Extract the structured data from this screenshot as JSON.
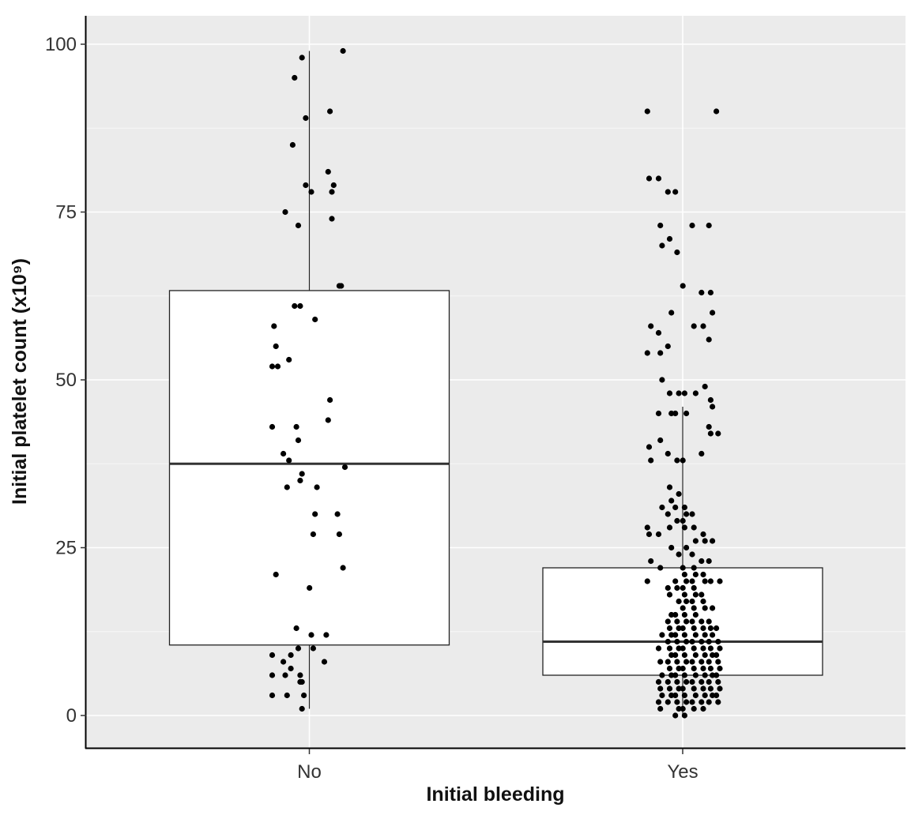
{
  "chart_data": {
    "type": "box",
    "title": "",
    "xlabel": "Initial bleeding",
    "ylabel": "Initial platelet count (x10⁹)",
    "ylim": [
      -5,
      105
    ],
    "yticks": [
      0,
      25,
      50,
      75,
      100
    ],
    "grid": true,
    "categories": [
      "No",
      "Yes"
    ],
    "boxes": [
      {
        "category": "No",
        "whisker_low": 1,
        "q1": 10.5,
        "median": 37.5,
        "q3": 63.3,
        "whisker_high": 99
      },
      {
        "category": "Yes",
        "whisker_low": 0,
        "q1": 6,
        "median": 11,
        "q3": 22,
        "whisker_high": 46
      }
    ],
    "points": [
      {
        "category": "No",
        "offset": 0.19,
        "values": [
          99
        ]
      },
      {
        "category": "No",
        "offset": -0.03,
        "values": [
          98
        ]
      },
      {
        "category": "No",
        "offset": -0.07,
        "values": [
          95
        ]
      },
      {
        "category": "No",
        "offset": 0.12,
        "values": [
          90
        ]
      },
      {
        "category": "No",
        "offset": -0.01,
        "values": [
          89
        ]
      },
      {
        "category": "No",
        "offset": -0.08,
        "values": [
          85
        ]
      },
      {
        "category": "No",
        "offset": 0.11,
        "values": [
          81
        ]
      },
      {
        "category": "No",
        "offset": 0.14,
        "values": [
          79
        ]
      },
      {
        "category": "No",
        "offset": -0.01,
        "values": [
          79
        ]
      },
      {
        "category": "No",
        "offset": 0.02,
        "values": [
          78
        ]
      },
      {
        "category": "No",
        "offset": 0.13,
        "values": [
          78
        ]
      },
      {
        "category": "No",
        "offset": -0.12,
        "values": [
          75
        ]
      },
      {
        "category": "No",
        "offset": 0.13,
        "values": [
          74
        ]
      },
      {
        "category": "No",
        "offset": -0.05,
        "values": [
          73
        ]
      },
      {
        "category": "No",
        "offset": 0.17,
        "values": [
          64
        ]
      },
      {
        "category": "No",
        "offset": 0.18,
        "values": [
          64
        ]
      },
      {
        "category": "No",
        "offset": -0.07,
        "values": [
          61
        ]
      },
      {
        "category": "No",
        "offset": -0.04,
        "values": [
          61
        ]
      },
      {
        "category": "No",
        "offset": 0.04,
        "values": [
          59
        ]
      },
      {
        "category": "No",
        "offset": -0.18,
        "values": [
          58
        ]
      },
      {
        "category": "No",
        "offset": -0.17,
        "values": [
          55
        ]
      },
      {
        "category": "No",
        "offset": -0.1,
        "values": [
          53
        ]
      },
      {
        "category": "No",
        "offset": -0.19,
        "values": [
          52
        ]
      },
      {
        "category": "No",
        "offset": -0.16,
        "values": [
          52
        ]
      },
      {
        "category": "No",
        "offset": 0.12,
        "values": [
          47
        ]
      },
      {
        "category": "No",
        "offset": 0.11,
        "values": [
          44
        ]
      },
      {
        "category": "No",
        "offset": -0.19,
        "values": [
          43
        ]
      },
      {
        "category": "No",
        "offset": -0.06,
        "values": [
          43
        ]
      },
      {
        "category": "No",
        "offset": -0.05,
        "values": [
          41
        ]
      },
      {
        "category": "No",
        "offset": -0.13,
        "values": [
          39
        ]
      },
      {
        "category": "No",
        "offset": -0.1,
        "values": [
          38
        ]
      },
      {
        "category": "No",
        "offset": 0.2,
        "values": [
          37
        ]
      },
      {
        "category": "No",
        "offset": -0.03,
        "values": [
          36
        ]
      },
      {
        "category": "No",
        "offset": -0.04,
        "values": [
          35
        ]
      },
      {
        "category": "No",
        "offset": -0.11,
        "values": [
          34
        ]
      },
      {
        "category": "No",
        "offset": 0.05,
        "values": [
          34
        ]
      },
      {
        "category": "No",
        "offset": 0.04,
        "values": [
          30
        ]
      },
      {
        "category": "No",
        "offset": 0.16,
        "values": [
          30
        ]
      },
      {
        "category": "No",
        "offset": 0.03,
        "values": [
          27
        ]
      },
      {
        "category": "No",
        "offset": 0.17,
        "values": [
          27
        ]
      },
      {
        "category": "No",
        "offset": 0.19,
        "values": [
          22
        ]
      },
      {
        "category": "No",
        "offset": -0.17,
        "values": [
          21
        ]
      },
      {
        "category": "No",
        "offset": 0.01,
        "values": [
          19
        ]
      },
      {
        "category": "No",
        "offset": -0.06,
        "values": [
          13
        ]
      },
      {
        "category": "No",
        "offset": 0.02,
        "values": [
          12
        ]
      },
      {
        "category": "No",
        "offset": 0.1,
        "values": [
          12
        ]
      },
      {
        "category": "No",
        "offset": -0.05,
        "values": [
          10
        ]
      },
      {
        "category": "No",
        "offset": 0.03,
        "values": [
          10
        ]
      },
      {
        "category": "No",
        "offset": -0.19,
        "values": [
          9
        ]
      },
      {
        "category": "No",
        "offset": -0.09,
        "values": [
          9
        ]
      },
      {
        "category": "No",
        "offset": -0.13,
        "values": [
          8
        ]
      },
      {
        "category": "No",
        "offset": 0.09,
        "values": [
          8
        ]
      },
      {
        "category": "No",
        "offset": -0.09,
        "values": [
          7
        ]
      },
      {
        "category": "No",
        "offset": -0.19,
        "values": [
          6
        ]
      },
      {
        "category": "No",
        "offset": -0.12,
        "values": [
          6
        ]
      },
      {
        "category": "No",
        "offset": -0.04,
        "values": [
          6
        ]
      },
      {
        "category": "No",
        "offset": -0.04,
        "values": [
          5
        ]
      },
      {
        "category": "No",
        "offset": -0.03,
        "values": [
          5
        ]
      },
      {
        "category": "No",
        "offset": -0.19,
        "values": [
          3
        ]
      },
      {
        "category": "No",
        "offset": -0.11,
        "values": [
          3
        ]
      },
      {
        "category": "No",
        "offset": -0.02,
        "values": [
          3
        ]
      },
      {
        "category": "No",
        "offset": -0.03,
        "values": [
          1
        ]
      },
      {
        "category": "Yes",
        "offset": -0.18,
        "values": [
          90,
          80,
          58,
          54,
          40,
          38,
          28,
          27,
          23,
          20
        ]
      },
      {
        "category": "Yes",
        "offset": -0.12,
        "values": [
          80,
          73,
          70,
          57,
          54,
          50,
          45,
          41,
          31,
          27,
          22,
          12,
          10,
          8,
          6,
          5,
          4,
          3,
          2,
          1
        ]
      },
      {
        "category": "Yes",
        "offset": -0.07,
        "values": [
          78,
          71,
          60,
          55,
          48,
          45,
          39,
          34,
          32,
          30,
          28,
          25,
          19,
          18,
          15,
          14,
          13,
          12,
          11,
          10,
          9,
          8,
          7,
          6,
          5,
          4,
          3,
          2
        ]
      },
      {
        "category": "Yes",
        "offset": -0.03,
        "values": [
          78,
          69,
          48,
          45,
          38,
          33,
          31,
          29,
          24,
          20,
          19,
          17,
          15,
          14,
          13,
          12,
          11,
          10,
          9,
          8,
          7,
          6,
          5,
          4,
          3,
          2,
          1,
          0
        ]
      },
      {
        "category": "Yes",
        "offset": 0.01,
        "values": [
          64,
          48,
          45,
          38,
          31,
          30,
          29,
          28,
          25,
          22,
          21,
          20,
          19,
          18,
          17,
          16,
          15,
          14,
          13,
          12,
          11,
          10,
          9,
          8,
          7,
          6,
          5,
          4,
          3,
          2,
          1,
          0
        ]
      },
      {
        "category": "Yes",
        "offset": 0.06,
        "values": [
          73,
          58,
          48,
          30,
          28,
          26,
          24,
          22,
          21,
          20,
          19,
          18,
          17,
          16,
          15,
          14,
          13,
          12,
          11,
          10,
          9,
          8,
          7,
          6,
          5,
          4,
          3,
          2,
          1
        ]
      },
      {
        "category": "Yes",
        "offset": 0.11,
        "values": [
          63,
          58,
          49,
          39,
          27,
          26,
          23,
          21,
          20,
          18,
          17,
          16,
          14,
          13,
          12,
          11,
          10,
          9,
          8,
          7,
          6,
          5,
          4,
          3,
          2,
          1
        ]
      },
      {
        "category": "Yes",
        "offset": 0.15,
        "values": [
          73,
          63,
          60,
          56,
          47,
          46,
          43,
          42,
          26,
          23,
          20,
          16,
          14,
          13,
          12,
          11,
          10,
          9,
          8,
          7,
          6,
          5,
          4,
          3,
          2
        ]
      },
      {
        "category": "Yes",
        "offset": 0.19,
        "values": [
          90,
          42,
          20,
          13,
          11,
          10,
          9,
          8,
          7,
          6,
          5,
          4,
          3,
          2
        ]
      }
    ]
  }
}
